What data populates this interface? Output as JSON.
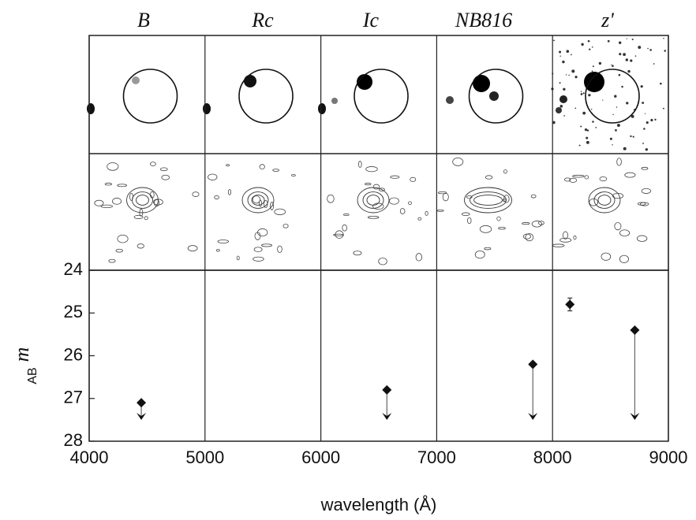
{
  "chart_data": {
    "type": "scatter",
    "panel_labels": [
      "B",
      "Rc",
      "Ic",
      "NB816",
      "z'"
    ],
    "ylabel": "m",
    "ylabel_subscript": "AB",
    "xlabel": "wavelength (Å)",
    "xlim": [
      4000,
      9000
    ],
    "xticks": [
      4000,
      5000,
      6000,
      7000,
      8000,
      9000
    ],
    "ylim": [
      28,
      24
    ],
    "yticks": [
      24,
      25,
      26,
      27,
      28
    ],
    "series": [
      {
        "x": [
          4450,
          6570,
          7830,
          8710
        ],
        "values": [
          27.1,
          26.8,
          26.2,
          25.4
        ],
        "upper_limit": true,
        "color": "#111111"
      },
      {
        "x": [
          8150
        ],
        "values": [
          24.8
        ],
        "errors": [
          0.15
        ],
        "upper_limit": false,
        "color": "#111111"
      }
    ]
  }
}
